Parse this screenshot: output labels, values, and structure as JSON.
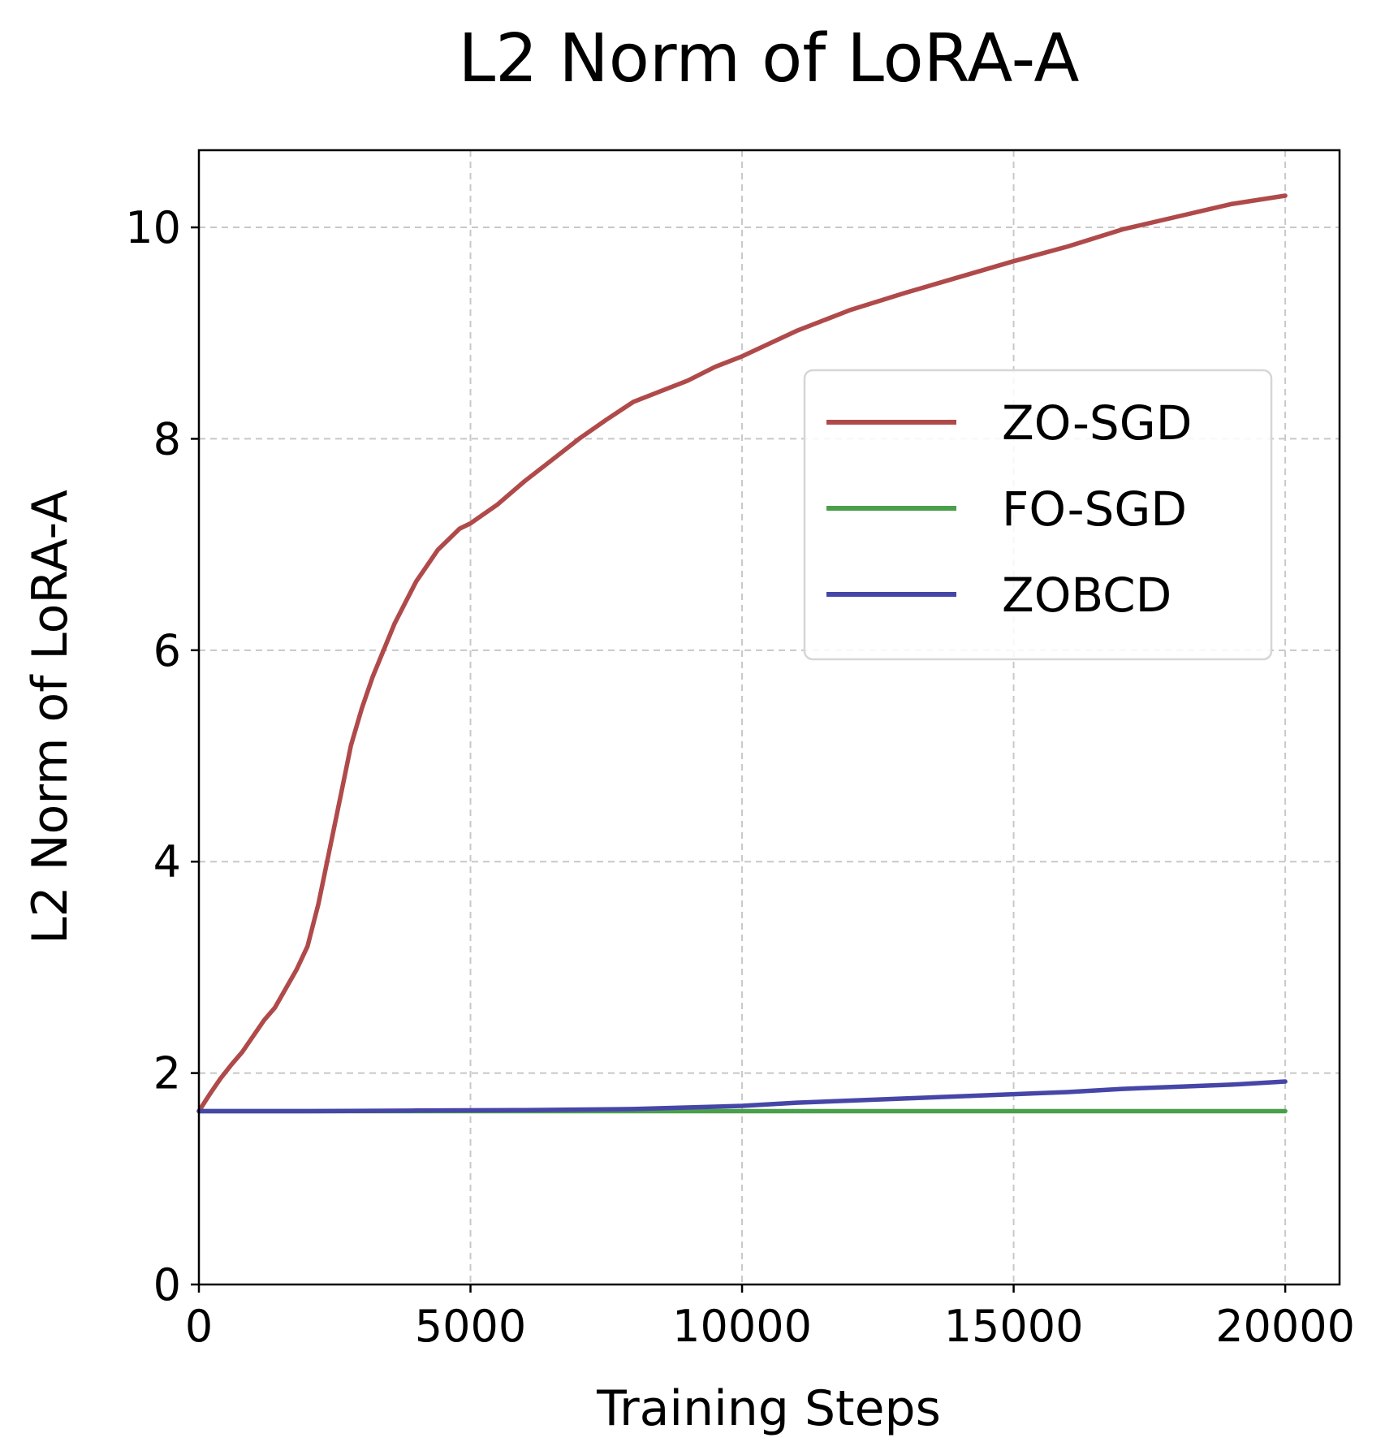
{
  "chart_data": {
    "type": "line",
    "title": "L2 Norm of LoRA-A",
    "xlabel": "Training Steps",
    "ylabel": "L2 Norm of LoRA-A",
    "xlim": [
      0,
      21000
    ],
    "ylim": [
      0,
      10.73
    ],
    "xticks": [
      0,
      5000,
      10000,
      15000,
      20000
    ],
    "yticks": [
      0,
      2,
      4,
      6,
      8,
      10
    ],
    "xtick_labels": [
      "0",
      "5000",
      "10000",
      "15000",
      "20000"
    ],
    "ytick_labels": [
      "0",
      "2",
      "4",
      "6",
      "8",
      "10"
    ],
    "grid": true,
    "grid_style": "dashed",
    "legend_position": "upper-right",
    "series": [
      {
        "name": "ZO-SGD",
        "color": "#b04a4a",
        "x": [
          0,
          200,
          400,
          600,
          800,
          1000,
          1200,
          1400,
          1600,
          1800,
          2000,
          2200,
          2400,
          2600,
          2800,
          3000,
          3200,
          3400,
          3600,
          3800,
          4000,
          4200,
          4400,
          4600,
          4800,
          5000,
          5500,
          6000,
          6500,
          7000,
          7500,
          8000,
          8500,
          9000,
          9500,
          10000,
          11000,
          12000,
          13000,
          14000,
          15000,
          16000,
          17000,
          18000,
          19000,
          20000
        ],
        "values": [
          1.64,
          1.8,
          1.95,
          2.08,
          2.2,
          2.35,
          2.5,
          2.62,
          2.8,
          2.98,
          3.2,
          3.6,
          4.1,
          4.6,
          5.1,
          5.45,
          5.75,
          6.0,
          6.25,
          6.45,
          6.65,
          6.8,
          6.95,
          7.05,
          7.15,
          7.2,
          7.38,
          7.6,
          7.8,
          8.0,
          8.18,
          8.35,
          8.45,
          8.55,
          8.68,
          8.78,
          9.02,
          9.22,
          9.38,
          9.53,
          9.68,
          9.82,
          9.98,
          10.1,
          10.22,
          10.3
        ]
      },
      {
        "name": "FO-SGD",
        "color": "#4aa04a",
        "x": [
          0,
          5000,
          10000,
          15000,
          20000
        ],
        "values": [
          1.64,
          1.64,
          1.64,
          1.64,
          1.64
        ]
      },
      {
        "name": "ZOBCD",
        "color": "#4646a8",
        "x": [
          0,
          2000,
          4000,
          6000,
          8000,
          10000,
          11000,
          12000,
          13000,
          14000,
          15000,
          16000,
          17000,
          18000,
          19000,
          20000
        ],
        "values": [
          1.64,
          1.64,
          1.645,
          1.65,
          1.66,
          1.69,
          1.72,
          1.74,
          1.76,
          1.78,
          1.8,
          1.82,
          1.85,
          1.87,
          1.89,
          1.92
        ]
      }
    ]
  }
}
